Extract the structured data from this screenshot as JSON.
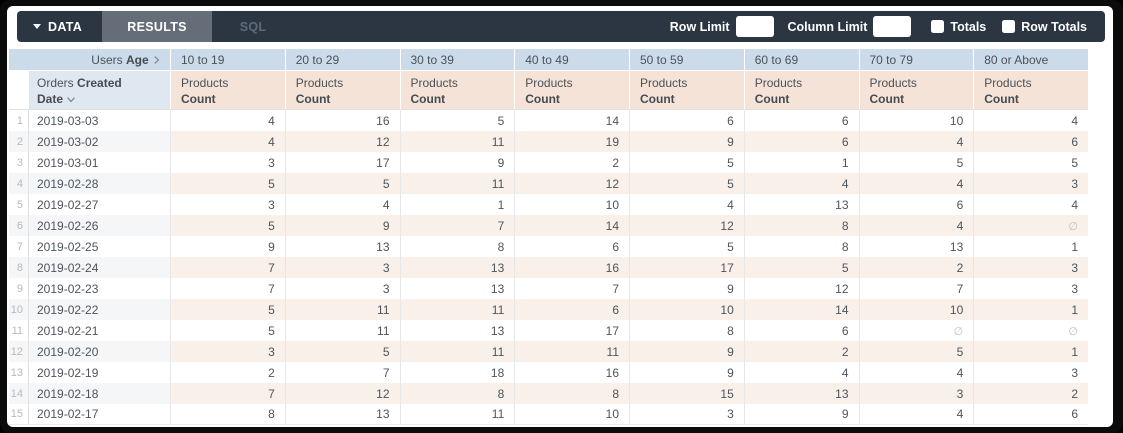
{
  "toolbar": {
    "tabs": {
      "data": "DATA",
      "results": "RESULTS",
      "sql": "SQL"
    },
    "row_limit_label": "Row Limit",
    "row_limit_value": "",
    "column_limit_label": "Column Limit",
    "column_limit_value": "",
    "totals_label": "Totals",
    "totals_checked": false,
    "row_totals_label": "Row Totals",
    "row_totals_checked": false
  },
  "colors": {
    "toolbar_bg": "#2b3642",
    "active_tab_bg": "#656d78",
    "pivot_header_bg": "#ccdbe9",
    "row_field_bg": "#dfe8f1",
    "measure_header_bg": "#f5e3d7",
    "even_row_tint": "#f8f0e9",
    "even_row_gray": "#f5f6f8"
  },
  "table": {
    "pivot_field": {
      "normal": "Users",
      "bold": "Age"
    },
    "row_field": {
      "normal": "Orders",
      "bold": "Created Date"
    },
    "measure_header": {
      "line1": "Products",
      "line2": "Count"
    },
    "age_buckets": [
      "10 to 19",
      "20 to 29",
      "30 to 39",
      "40 to 49",
      "50 to 59",
      "60 to 69",
      "70 to 79",
      "80 or Above"
    ],
    "null_symbol": "∅",
    "rows": [
      {
        "num": 1,
        "date": "2019-03-03",
        "values": [
          4,
          16,
          5,
          14,
          6,
          6,
          10,
          4
        ]
      },
      {
        "num": 2,
        "date": "2019-03-02",
        "values": [
          4,
          12,
          11,
          19,
          9,
          6,
          4,
          6
        ]
      },
      {
        "num": 3,
        "date": "2019-03-01",
        "values": [
          3,
          17,
          9,
          2,
          5,
          1,
          5,
          5
        ]
      },
      {
        "num": 4,
        "date": "2019-02-28",
        "values": [
          5,
          5,
          11,
          12,
          5,
          4,
          4,
          3
        ]
      },
      {
        "num": 5,
        "date": "2019-02-27",
        "values": [
          3,
          4,
          1,
          10,
          4,
          13,
          6,
          4
        ]
      },
      {
        "num": 6,
        "date": "2019-02-26",
        "values": [
          5,
          9,
          7,
          14,
          12,
          8,
          4,
          null
        ]
      },
      {
        "num": 7,
        "date": "2019-02-25",
        "values": [
          9,
          13,
          8,
          6,
          5,
          8,
          13,
          1
        ]
      },
      {
        "num": 8,
        "date": "2019-02-24",
        "values": [
          7,
          3,
          13,
          16,
          17,
          5,
          2,
          3
        ]
      },
      {
        "num": 9,
        "date": "2019-02-23",
        "values": [
          7,
          3,
          13,
          7,
          9,
          12,
          7,
          3
        ]
      },
      {
        "num": 10,
        "date": "2019-02-22",
        "values": [
          5,
          11,
          11,
          6,
          10,
          14,
          10,
          1
        ]
      },
      {
        "num": 11,
        "date": "2019-02-21",
        "values": [
          5,
          11,
          13,
          17,
          8,
          6,
          null,
          null
        ]
      },
      {
        "num": 12,
        "date": "2019-02-20",
        "values": [
          3,
          5,
          11,
          11,
          9,
          2,
          5,
          1
        ]
      },
      {
        "num": 13,
        "date": "2019-02-19",
        "values": [
          2,
          7,
          18,
          16,
          9,
          4,
          4,
          3
        ]
      },
      {
        "num": 14,
        "date": "2019-02-18",
        "values": [
          7,
          12,
          8,
          8,
          15,
          13,
          3,
          2
        ]
      },
      {
        "num": 15,
        "date": "2019-02-17",
        "values": [
          8,
          13,
          11,
          10,
          3,
          9,
          4,
          6
        ]
      }
    ]
  }
}
